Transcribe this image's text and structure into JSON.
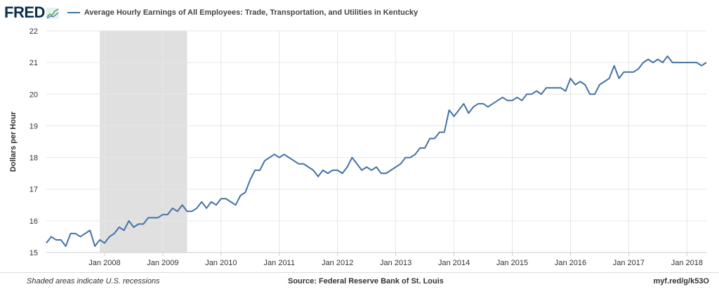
{
  "header": {
    "logo_text": "FRED",
    "logo_icon": "fred-trend-icon",
    "series_title": "Average Hourly Earnings of All Employees: Trade, Transportation, and Utilities in Kentucky"
  },
  "footer": {
    "note": "Shaded areas indicate U.S. recessions",
    "source": "Source: Federal Reserve Bank of St. Louis",
    "url": "myf.red/g/k53O"
  },
  "colors": {
    "line": "#4572a7",
    "recession": "#e0e0e0",
    "grid": "#e6e6e6",
    "axis": "#cccccc"
  },
  "chart_data": {
    "type": "line",
    "title": "Average Hourly Earnings of All Employees: Trade, Transportation, and Utilities in Kentucky",
    "ylabel": "Dollars per Hour",
    "xlabel": "",
    "ylim": [
      15,
      22
    ],
    "yticks": [
      15,
      16,
      17,
      18,
      19,
      20,
      21,
      22
    ],
    "xlim": [
      "2007-01",
      "2018-05"
    ],
    "xticks": [
      {
        "label": "Jan 2008",
        "date": "2008-01"
      },
      {
        "label": "Jan 2009",
        "date": "2009-01"
      },
      {
        "label": "Jan 2010",
        "date": "2010-01"
      },
      {
        "label": "Jan 2011",
        "date": "2011-01"
      },
      {
        "label": "Jan 2012",
        "date": "2012-01"
      },
      {
        "label": "Jan 2013",
        "date": "2013-01"
      },
      {
        "label": "Jan 2014",
        "date": "2014-01"
      },
      {
        "label": "Jan 2015",
        "date": "2015-01"
      },
      {
        "label": "Jan 2016",
        "date": "2016-01"
      },
      {
        "label": "Jan 2017",
        "date": "2017-01"
      },
      {
        "label": "Jan 2018",
        "date": "2018-01"
      }
    ],
    "grid": true,
    "recessions": [
      {
        "start": "2007-12",
        "end": "2009-06"
      }
    ],
    "series": [
      {
        "name": "Average Hourly Earnings of All Employees: Trade, Transportation, and Utilities in Kentucky",
        "start": "2007-01",
        "values": [
          15.3,
          15.5,
          15.4,
          15.4,
          15.2,
          15.6,
          15.6,
          15.5,
          15.6,
          15.7,
          15.2,
          15.4,
          15.3,
          15.5,
          15.6,
          15.8,
          15.7,
          16.0,
          15.8,
          15.9,
          15.9,
          16.1,
          16.1,
          16.1,
          16.2,
          16.2,
          16.4,
          16.3,
          16.5,
          16.3,
          16.3,
          16.4,
          16.6,
          16.4,
          16.6,
          16.5,
          16.7,
          16.7,
          16.6,
          16.5,
          16.8,
          16.9,
          17.3,
          17.6,
          17.6,
          17.9,
          18.0,
          18.1,
          18.0,
          18.1,
          18.0,
          17.9,
          17.8,
          17.8,
          17.7,
          17.6,
          17.4,
          17.6,
          17.5,
          17.6,
          17.6,
          17.5,
          17.7,
          18.0,
          17.8,
          17.6,
          17.7,
          17.6,
          17.7,
          17.5,
          17.5,
          17.6,
          17.7,
          17.8,
          18.0,
          18.0,
          18.1,
          18.3,
          18.3,
          18.6,
          18.6,
          18.8,
          18.8,
          19.5,
          19.3,
          19.5,
          19.7,
          19.4,
          19.6,
          19.7,
          19.7,
          19.6,
          19.7,
          19.8,
          19.9,
          19.8,
          19.8,
          19.9,
          19.8,
          20.0,
          20.0,
          20.1,
          20.0,
          20.2,
          20.2,
          20.2,
          20.2,
          20.1,
          20.5,
          20.3,
          20.4,
          20.3,
          20.0,
          20.0,
          20.3,
          20.4,
          20.5,
          20.9,
          20.5,
          20.7,
          20.7,
          20.7,
          20.8,
          21.0,
          21.1,
          21.0,
          21.1,
          21.0,
          21.2,
          21.0,
          21.0,
          21.0,
          21.0,
          21.0,
          21.0,
          20.9,
          21.0
        ]
      }
    ]
  }
}
